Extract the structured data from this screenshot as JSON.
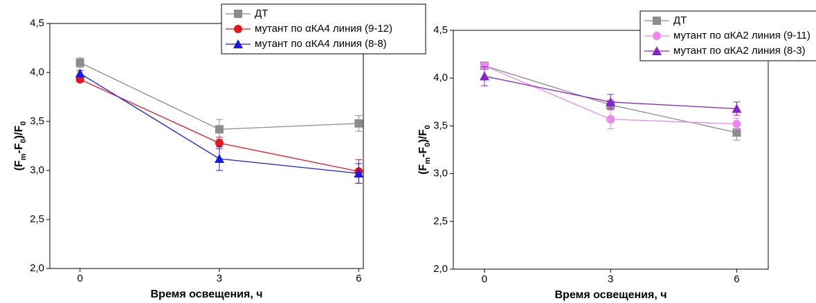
{
  "chart_data": [
    {
      "type": "line",
      "xlabel": "Время освещения, ч",
      "ylabel_parts": [
        "(F",
        "m",
        "-F",
        "0",
        ")/F",
        "0"
      ],
      "x": [
        0,
        3,
        6
      ],
      "xlim": [
        -0.65,
        6.1
      ],
      "xticks": [
        0,
        3,
        6
      ],
      "ylim": [
        2.0,
        4.5
      ],
      "yticks": [
        {
          "value": 2.0,
          "label": "2,0"
        },
        {
          "value": 2.5,
          "label": "2,5"
        },
        {
          "value": 3.0,
          "label": "3,0"
        },
        {
          "value": 3.5,
          "label": "3,5"
        },
        {
          "value": 4.0,
          "label": "4,0"
        },
        {
          "value": 4.5,
          "label": "4,5"
        }
      ],
      "legend": "upper right",
      "series": [
        {
          "name": "ДТ",
          "color": "#8c8c8c",
          "marker": "square",
          "values": [
            4.1,
            3.42,
            3.48
          ],
          "errors": [
            0.05,
            0.1,
            0.08
          ]
        },
        {
          "name": "мутант по αКА4 линия (9-12)",
          "color": "#e8141e",
          "marker": "circle",
          "values": [
            3.93,
            3.28,
            2.99
          ],
          "errors": [
            0.03,
            0.06,
            0.12
          ]
        },
        {
          "name": "мутант по αКА4 линия (8-8)",
          "color": "#1a1ae0",
          "marker": "triangle",
          "values": [
            3.99,
            3.12,
            2.97
          ],
          "errors": [
            0.03,
            0.12,
            0.1
          ]
        }
      ]
    },
    {
      "type": "line",
      "xlabel": "Время освещения, ч",
      "ylabel_parts": [
        "(F",
        "m",
        "-F",
        "0",
        ")/F",
        "0"
      ],
      "x": [
        0,
        3,
        6
      ],
      "xlim": [
        -0.74,
        6.75
      ],
      "xticks": [
        0,
        3,
        6
      ],
      "ylim": [
        2.0,
        4.5
      ],
      "yticks": [
        {
          "value": 2.0,
          "label": "2,0"
        },
        {
          "value": 2.5,
          "label": "2,5"
        },
        {
          "value": 3.0,
          "label": "3,0"
        },
        {
          "value": 3.5,
          "label": "3,5"
        },
        {
          "value": 4.0,
          "label": "4,0"
        },
        {
          "value": 4.5,
          "label": "4,5"
        }
      ],
      "legend": "upper right",
      "series": [
        {
          "name": "ДТ",
          "color": "#8c8c8c",
          "marker": "square",
          "values": [
            4.13,
            3.72,
            3.43
          ],
          "errors": [
            0.03,
            0.05,
            0.08
          ]
        },
        {
          "name": "мутант по αКА2 линия (9-11)",
          "color": "#ee88ee",
          "marker": "circle",
          "values": [
            4.13,
            3.57,
            3.52
          ],
          "errors": [
            0.03,
            0.1,
            0.06
          ]
        },
        {
          "name": "мутант по αКА2 линия (8-3)",
          "color": "#8a22cc",
          "marker": "triangle",
          "values": [
            4.02,
            3.75,
            3.68
          ],
          "errors": [
            0.1,
            0.08,
            0.07
          ]
        }
      ]
    }
  ]
}
